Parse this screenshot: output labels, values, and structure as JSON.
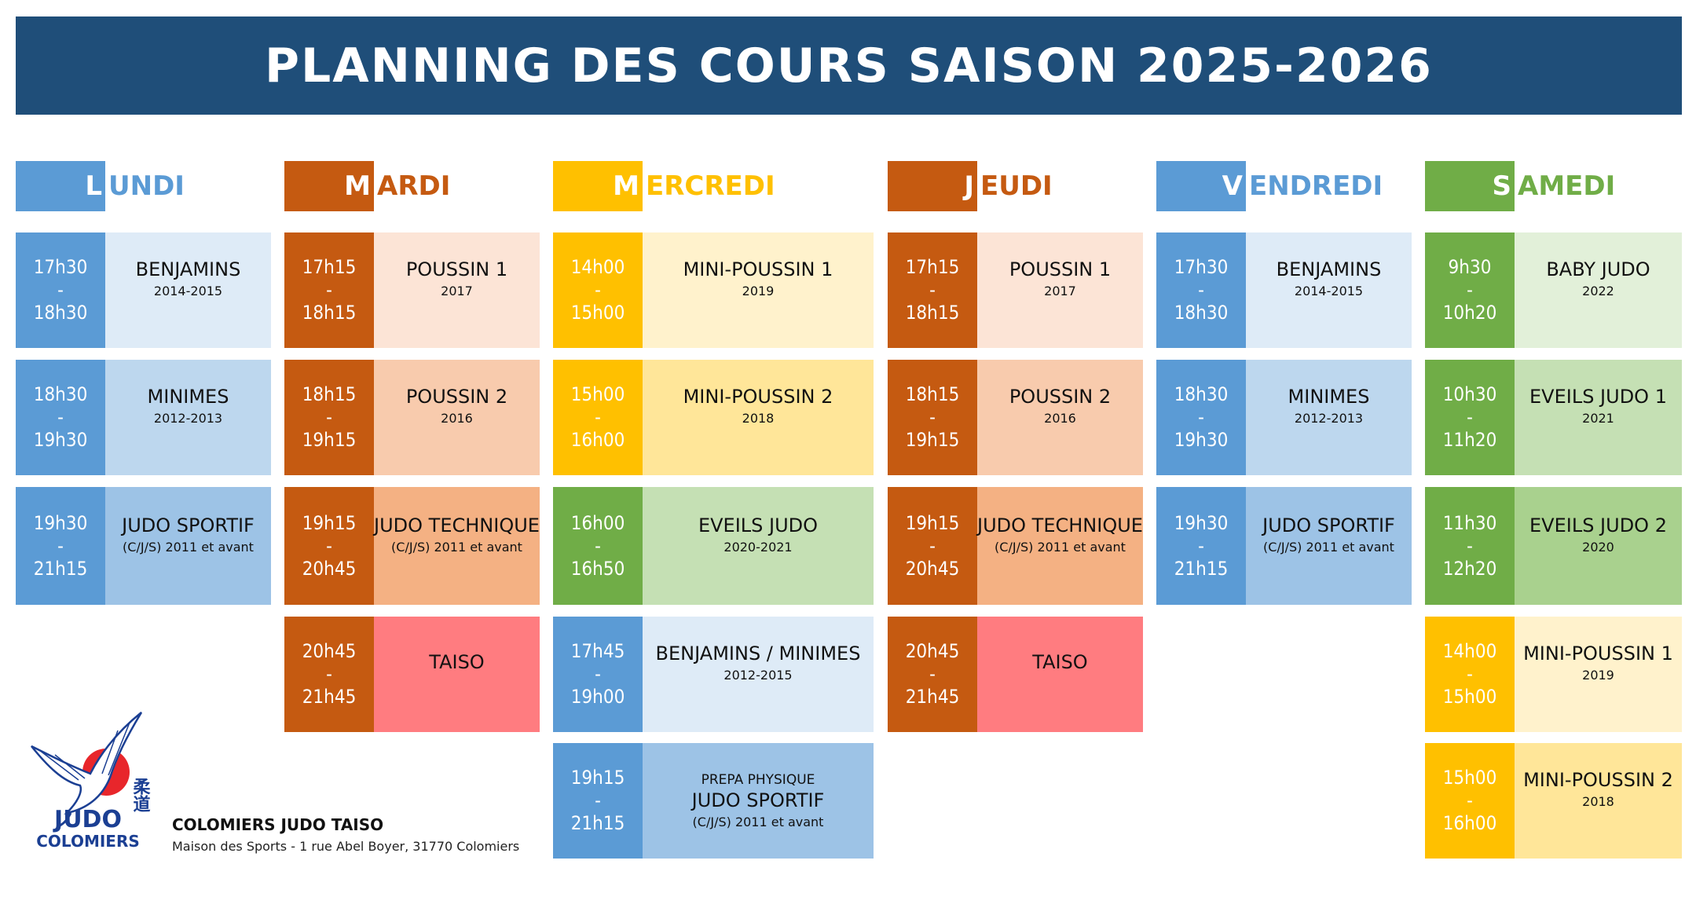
{
  "title": "PLANNING DES COURS SAISON 2025-2026",
  "days": [
    {
      "letter": "L",
      "rest": "UNDI",
      "color": "#5b9bd5",
      "slots": [
        {
          "start": "17h30",
          "end": "18h30",
          "title": "BENJAMINS",
          "sub": "2014-2015",
          "time_color": "#5b9bd5",
          "bg": "#deebf7"
        },
        {
          "start": "18h30",
          "end": "19h30",
          "title": "MINIMES",
          "sub": "2012-2013",
          "time_color": "#5b9bd5",
          "bg": "#bdd7ee"
        },
        {
          "start": "19h30",
          "end": "21h15",
          "title": "JUDO SPORTIF",
          "sub": "(C/J/S) 2011 et avant",
          "time_color": "#5b9bd5",
          "bg": "#9dc3e6"
        }
      ]
    },
    {
      "letter": "M",
      "rest": "ARDI",
      "color": "#c55a11",
      "slots": [
        {
          "start": "17h15",
          "end": "18h15",
          "title": "POUSSIN 1",
          "sub": "2017",
          "time_color": "#c55a11",
          "bg": "#fce4d6"
        },
        {
          "start": "18h15",
          "end": "19h15",
          "title": "POUSSIN 2",
          "sub": "2016",
          "time_color": "#c55a11",
          "bg": "#f8cbad"
        },
        {
          "start": "19h15",
          "end": "20h45",
          "title": "JUDO TECHNIQUE",
          "sub": "(C/J/S) 2011 et avant",
          "time_color": "#c55a11",
          "bg": "#f4b183"
        },
        {
          "start": "20h45",
          "end": "21h45",
          "title": "TAISO",
          "sub": "",
          "time_color": "#c55a11",
          "bg": "#ff7c80"
        }
      ]
    },
    {
      "letter": "M",
      "rest": "ERCREDI",
      "color": "#ffc000",
      "slots": [
        {
          "start": "14h00",
          "end": "15h00",
          "title": "MINI-POUSSIN 1",
          "sub": "2019",
          "time_color": "#ffc000",
          "bg": "#fff2cc"
        },
        {
          "start": "15h00",
          "end": "16h00",
          "title": "MINI-POUSSIN 2",
          "sub": "2018",
          "time_color": "#ffc000",
          "bg": "#ffe699"
        },
        {
          "start": "16h00",
          "end": "16h50",
          "title": "EVEILS JUDO",
          "sub": "2020-2021",
          "time_color": "#70ad47",
          "bg": "#c5e0b4"
        },
        {
          "start": "17h45",
          "end": "19h00",
          "title": "BENJAMINS / MINIMES",
          "sub": "2012-2015",
          "time_color": "#5b9bd5",
          "bg": "#deebf7"
        },
        {
          "start": "19h15",
          "end": "21h15",
          "pre": "PREPA PHYSIQUE",
          "title": "JUDO SPORTIF",
          "sub": "(C/J/S) 2011 et avant",
          "time_color": "#5b9bd5",
          "bg": "#9dc3e6"
        }
      ]
    },
    {
      "letter": "J",
      "rest": "EUDI",
      "color": "#c55a11",
      "slots": [
        {
          "start": "17h15",
          "end": "18h15",
          "title": "POUSSIN 1",
          "sub": "2017",
          "time_color": "#c55a11",
          "bg": "#fce4d6"
        },
        {
          "start": "18h15",
          "end": "19h15",
          "title": "POUSSIN 2",
          "sub": "2016",
          "time_color": "#c55a11",
          "bg": "#f8cbad"
        },
        {
          "start": "19h15",
          "end": "20h45",
          "title": "JUDO TECHNIQUE",
          "sub": "(C/J/S) 2011 et avant",
          "time_color": "#c55a11",
          "bg": "#f4b183"
        },
        {
          "start": "20h45",
          "end": "21h45",
          "title": "TAISO",
          "sub": "",
          "time_color": "#c55a11",
          "bg": "#ff7c80"
        }
      ]
    },
    {
      "letter": "V",
      "rest": "ENDREDI",
      "color": "#5b9bd5",
      "slots": [
        {
          "start": "17h30",
          "end": "18h30",
          "title": "BENJAMINS",
          "sub": "2014-2015",
          "time_color": "#5b9bd5",
          "bg": "#deebf7"
        },
        {
          "start": "18h30",
          "end": "19h30",
          "title": "MINIMES",
          "sub": "2012-2013",
          "time_color": "#5b9bd5",
          "bg": "#bdd7ee"
        },
        {
          "start": "19h30",
          "end": "21h15",
          "title": "JUDO SPORTIF",
          "sub": "(C/J/S) 2011 et avant",
          "time_color": "#5b9bd5",
          "bg": "#9dc3e6"
        }
      ]
    },
    {
      "letter": "S",
      "rest": "AMEDI",
      "color": "#70ad47",
      "slots": [
        {
          "start": "9h30",
          "end": "10h20",
          "title": "BABY JUDO",
          "sub": "2022",
          "time_color": "#70ad47",
          "bg": "#e2f0d9"
        },
        {
          "start": "10h30",
          "end": "11h20",
          "title": "EVEILS JUDO 1",
          "sub": "2021",
          "time_color": "#70ad47",
          "bg": "#c5e0b4"
        },
        {
          "start": "11h30",
          "end": "12h20",
          "title": "EVEILS JUDO 2",
          "sub": "2020",
          "time_color": "#70ad47",
          "bg": "#a9d18e"
        },
        {
          "start": "14h00",
          "end": "15h00",
          "title": "MINI-POUSSIN 1",
          "sub": "2019",
          "time_color": "#ffc000",
          "bg": "#fff2cc"
        },
        {
          "start": "15h00",
          "end": "16h00",
          "title": "MINI-POUSSIN 2",
          "sub": "2018",
          "time_color": "#ffc000",
          "bg": "#ffe699"
        }
      ]
    }
  ],
  "logo": {
    "text1": "JUDO",
    "text2": "COLOMIERS",
    "kanji": "柔道"
  },
  "footer": {
    "club_name": "COLOMIERS JUDO TAISO",
    "address": "Maison des Sports - 1 rue Abel Boyer, 31770 Colomiers"
  }
}
